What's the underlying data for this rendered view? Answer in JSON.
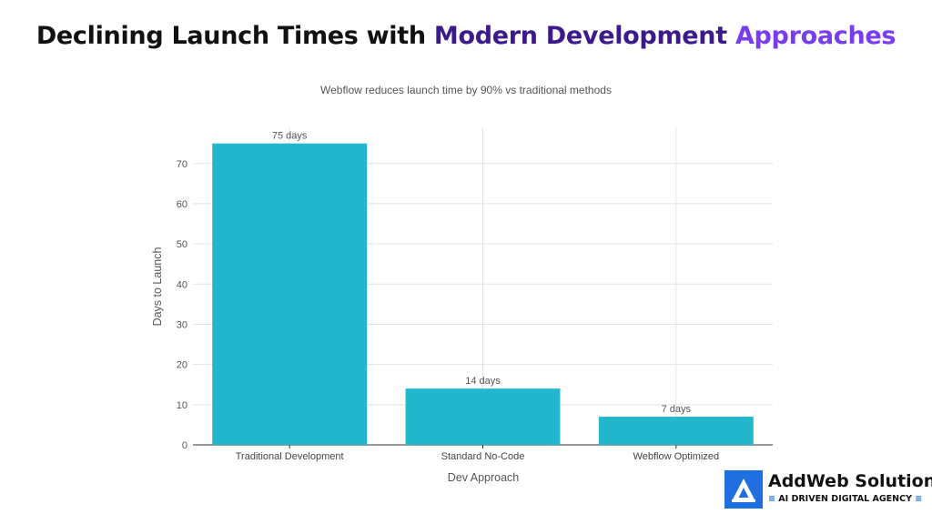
{
  "header": {
    "title_part1": "Declining Launch Times with ",
    "title_part2": "Modern Development ",
    "title_part3": "Approaches"
  },
  "chart_data": {
    "type": "bar",
    "subtitle": "Webflow reduces launch time by 90% vs traditional methods",
    "categories": [
      "Traditional Development",
      "Standard No-Code",
      "Webflow Optimized"
    ],
    "values": [
      75,
      14,
      7
    ],
    "data_labels": [
      "75 days",
      "14 days",
      "7 days"
    ],
    "xlabel": "Dev Approach",
    "ylabel": "Days to Launch",
    "ylim": [
      0,
      79
    ],
    "yticks": [
      0,
      10,
      20,
      30,
      40,
      50,
      60,
      70
    ],
    "grid": true,
    "bar_color": "#22b7cc"
  },
  "logo": {
    "name": "AddWeb Solution",
    "tagline": "AI DRIVEN DIGITAL AGENCY",
    "wave_left": "≡",
    "wave_right": "≡",
    "brand_color": "#1f6fe0"
  }
}
